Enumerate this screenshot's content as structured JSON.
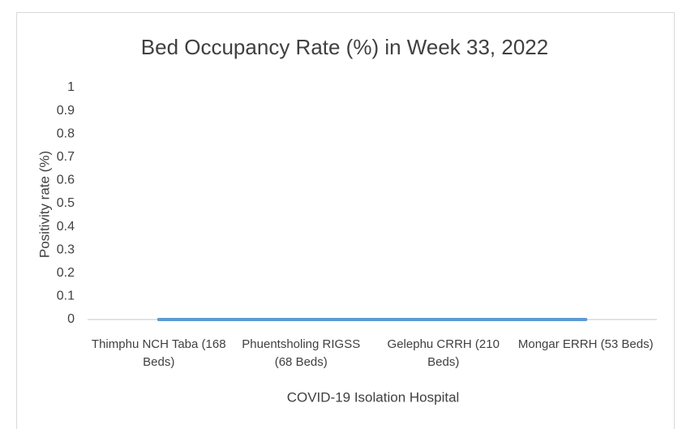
{
  "chart_data": {
    "type": "line",
    "title": "Bed Occupancy Rate (%) in Week 33, 2022",
    "x_label": "COVID-19 Isolation Hospital",
    "y_label": "Positivity rate (%)",
    "categories": [
      "Thimphu NCH Taba (168 Beds)",
      "Phuentsholing RIGSS (68 Beds)",
      "Gelephu CRRH (210 Beds)",
      "Mongar ERRH (53 Beds)"
    ],
    "values": [
      0,
      0,
      0,
      0
    ],
    "color": "#5b9bd5",
    "ylim": [
      0,
      1
    ],
    "yticks": [
      0,
      0.1,
      0.2,
      0.3,
      0.4,
      0.5,
      0.6,
      0.7,
      0.8,
      0.9,
      1
    ],
    "grid": false
  }
}
